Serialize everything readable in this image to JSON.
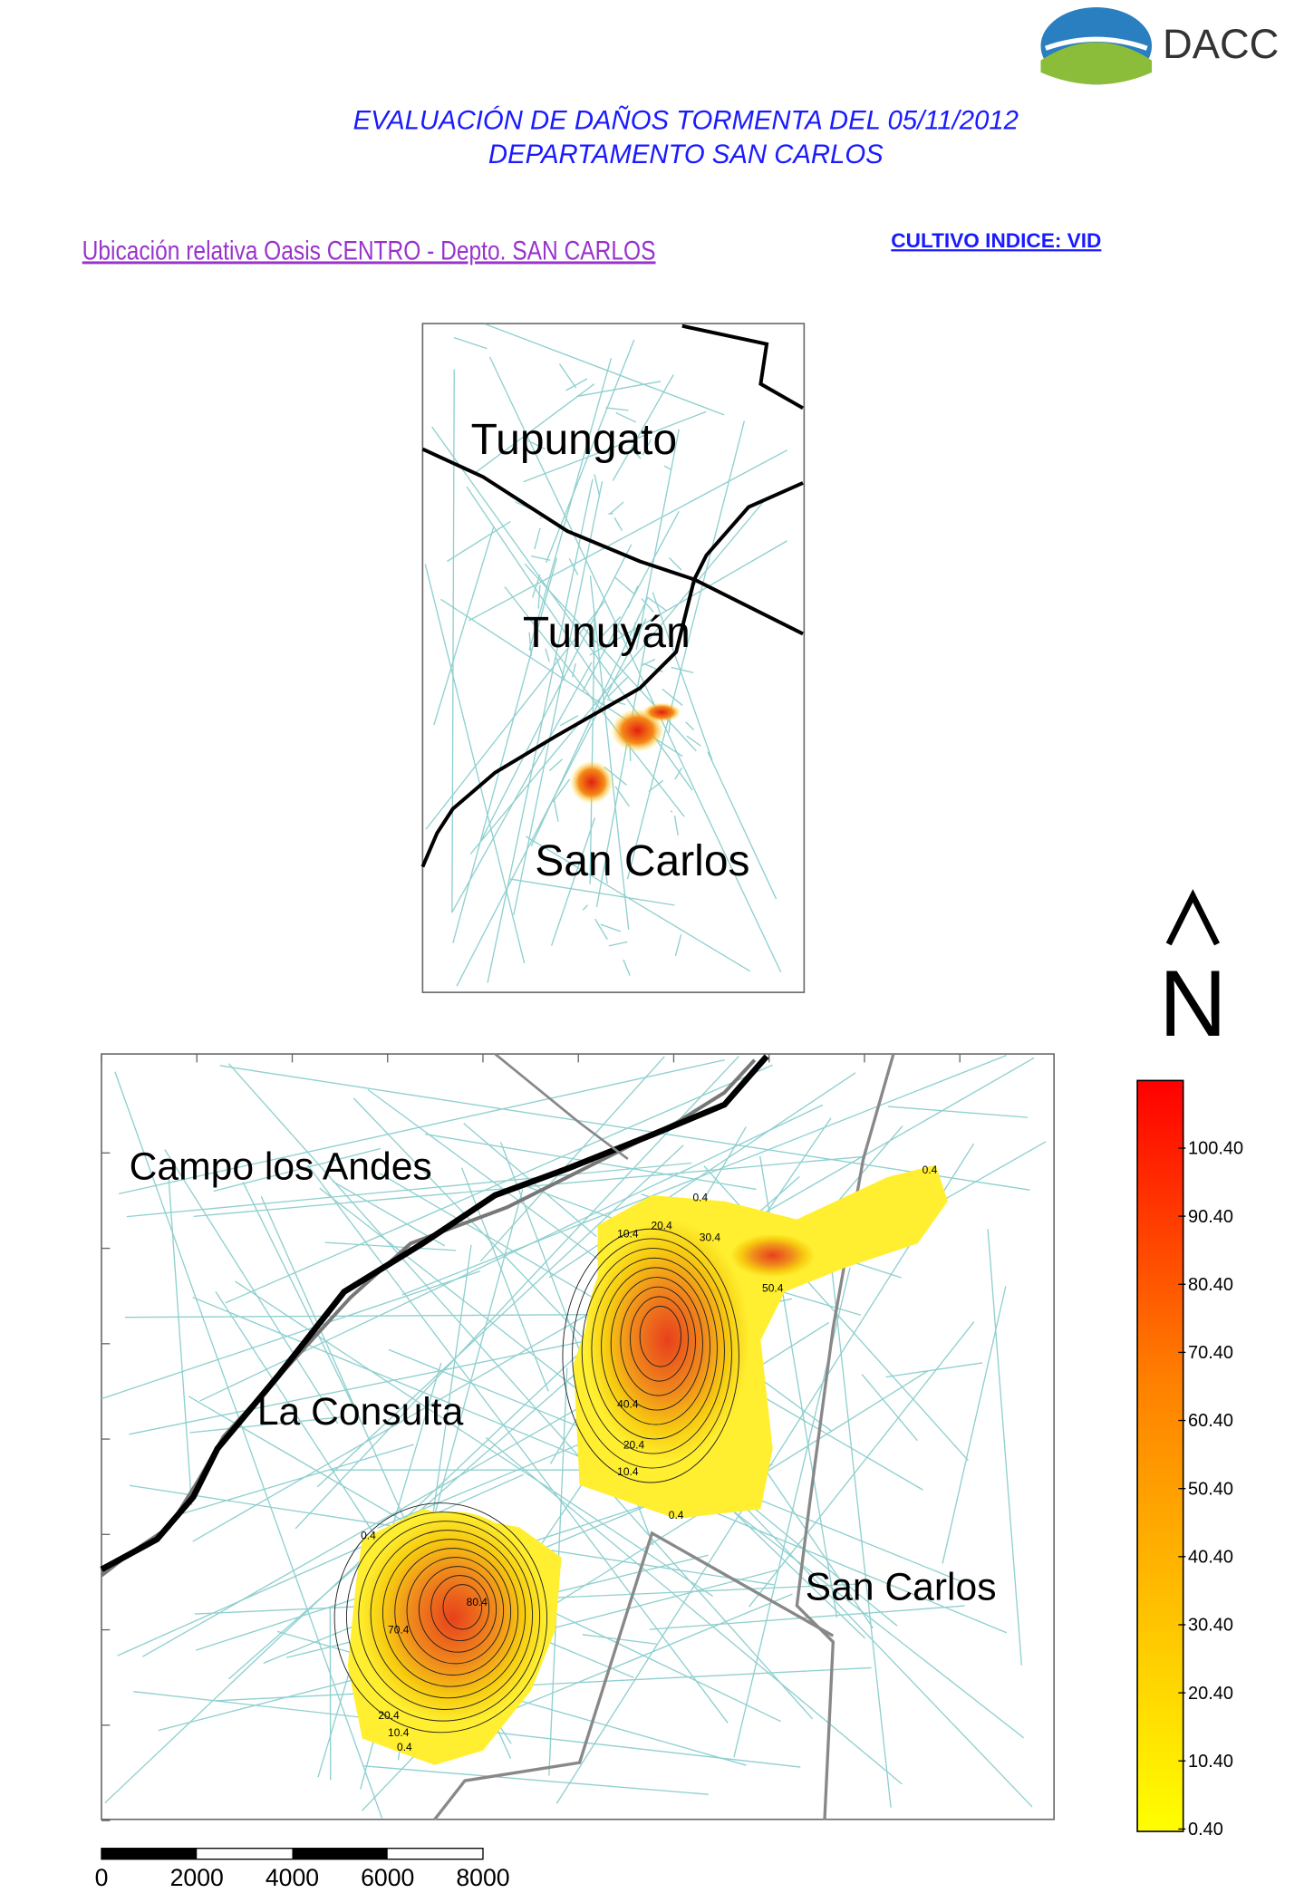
{
  "header": {
    "logo": "DACC",
    "title_line1": "EVALUACIÓN DE DAÑOS TORMENTA DEL 05/11/2012",
    "title_line2": "DEPARTAMENTO SAN CARLOS",
    "subtitle": "Ubicación relativa Oasis CENTRO - Depto. SAN CARLOS",
    "crop": "CULTIVO INDICE: VID"
  },
  "inset_map": {
    "labels": [
      "Tupungato",
      "Tunuyán",
      "San Carlos"
    ]
  },
  "main_map": {
    "labels": [
      "Campo los Andes",
      "La Consulta",
      "San Carlos"
    ],
    "contour_labels": [
      "0.4",
      "10.4",
      "20.4",
      "30.4",
      "40.4",
      "50.4",
      "0.4",
      "10.4",
      "20.4",
      "80.4",
      "70.4",
      "0.4",
      "10.4",
      "20.4",
      "0.4",
      "0.4"
    ]
  },
  "north": "N",
  "legend": {
    "labels": [
      "100.40",
      "90.40",
      "80.40",
      "70.40",
      "60.40",
      "50.40",
      "40.40",
      "30.40",
      "20.40",
      "10.40",
      "0.40"
    ]
  },
  "scale_bar": {
    "labels": [
      0,
      2000,
      4000,
      6000,
      8000
    ]
  }
}
